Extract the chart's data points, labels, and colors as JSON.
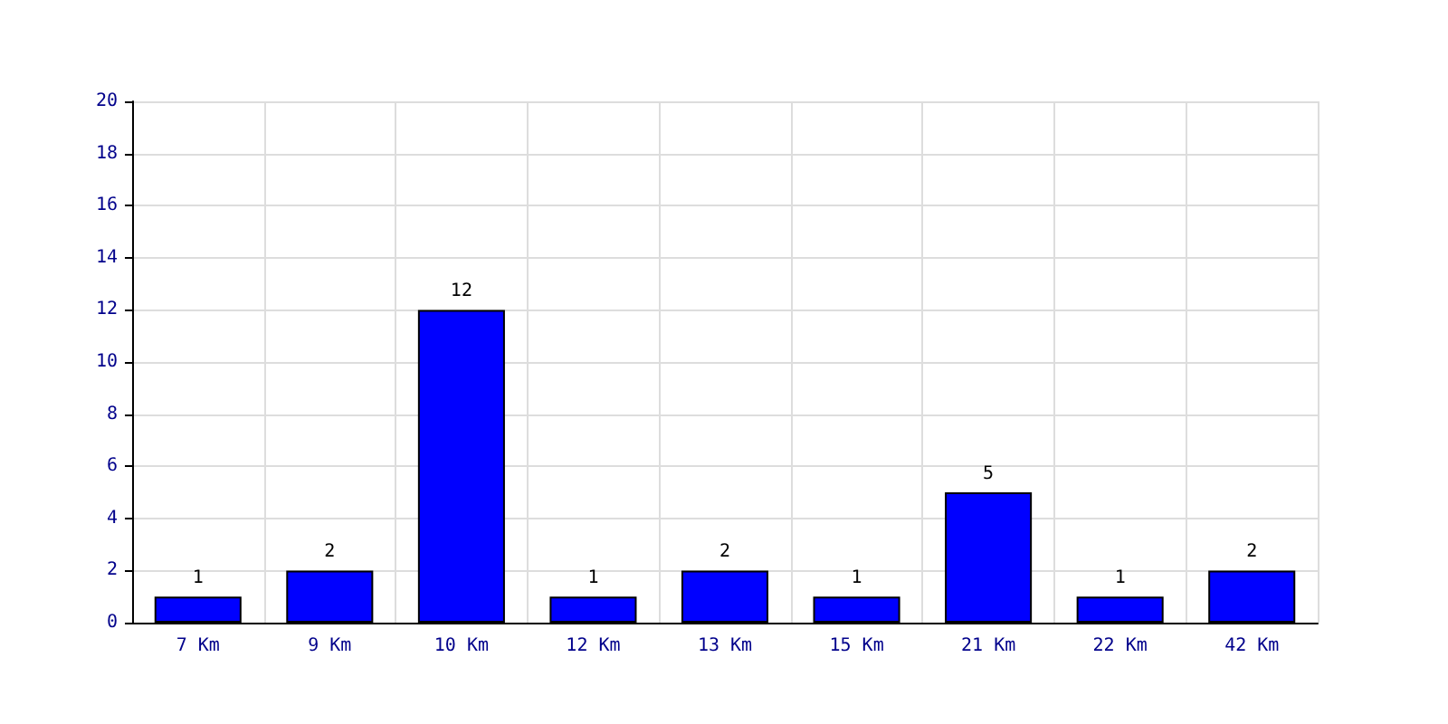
{
  "chart_data": {
    "type": "bar",
    "categories": [
      "7 Km",
      "9 Km",
      "10 Km",
      "12 Km",
      "13 Km",
      "15 Km",
      "21 Km",
      "22 Km",
      "42 Km"
    ],
    "values": [
      1,
      2,
      12,
      1,
      2,
      1,
      5,
      1,
      2
    ],
    "color": "#0000ff",
    "ylim": [
      0,
      20
    ],
    "yticks": [
      0,
      2,
      4,
      6,
      8,
      10,
      12,
      14,
      16,
      18,
      20
    ],
    "grid": true,
    "data_labels": true
  }
}
